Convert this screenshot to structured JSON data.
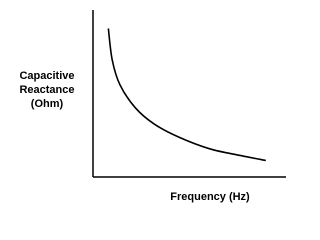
{
  "chart_data": {
    "type": "line",
    "y_label": [
      "Capacitive",
      "Reactance",
      "(Ohm)"
    ],
    "x_label": "Frequency (Hz)",
    "x": [
      8,
      10,
      14,
      22,
      32,
      45,
      61,
      77,
      90
    ],
    "values": [
      90,
      71,
      56,
      42,
      32,
      24,
      17,
      13,
      10
    ],
    "color": "#000000",
    "xlim": [
      0,
      100
    ],
    "ylim": [
      0,
      100
    ]
  }
}
